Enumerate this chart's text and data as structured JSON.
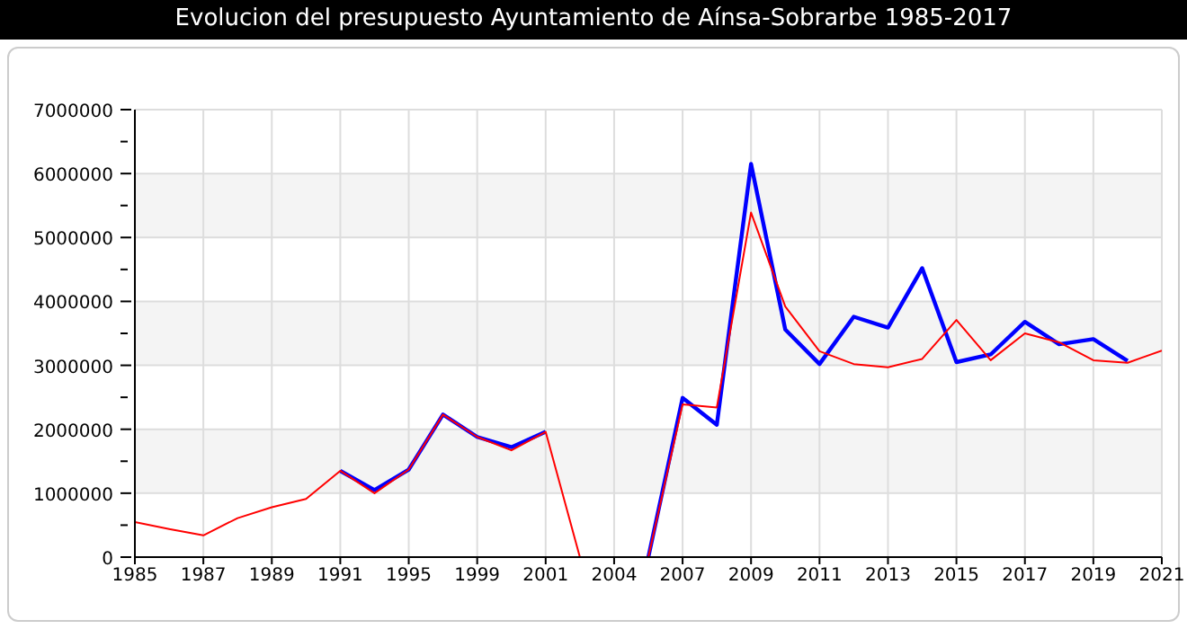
{
  "chart_data": {
    "type": "line",
    "title": "Evolucion del presupuesto Ayuntamiento de Aínsa-Sobrarbe 1985-2017",
    "categories": [
      "1985",
      null,
      "1987",
      null,
      "1989",
      null,
      "1991",
      null,
      "1995",
      null,
      "1999",
      null,
      "2001",
      null,
      "2004",
      null,
      "2007",
      null,
      "2009",
      null,
      "2011",
      null,
      "2013",
      null,
      "2015",
      null,
      "2017",
      null,
      "2019",
      null,
      "2021"
    ],
    "series": [
      {
        "color": "#0000ff",
        "values": [
          null,
          null,
          null,
          null,
          null,
          null,
          1350000,
          1050000,
          1370000,
          2230000,
          1880000,
          1720000,
          1960000,
          null,
          null,
          0,
          2490000,
          2070000,
          6150000,
          3560000,
          3020000,
          3760000,
          3590000,
          4520000,
          3050000,
          3170000,
          3680000,
          3330000,
          3410000,
          3070000,
          null
        ]
      },
      {
        "color": "#ff0000",
        "values": [
          550000,
          440000,
          340000,
          610000,
          780000,
          910000,
          1350000,
          1000000,
          1370000,
          2230000,
          1880000,
          1670000,
          1960000,
          0,
          0,
          0,
          2390000,
          2340000,
          5390000,
          3920000,
          3220000,
          3020000,
          2970000,
          3100000,
          3710000,
          3080000,
          3500000,
          3360000,
          3080000,
          3040000,
          3230000
        ]
      }
    ],
    "ylim": [
      0,
      7000000
    ],
    "yticks": [
      0,
      {
        "value": 500000,
        "label": null
      },
      1000000,
      {
        "value": 1500000,
        "label": null
      },
      2000000,
      {
        "value": 2500000,
        "label": null
      },
      3000000,
      {
        "value": 3500000,
        "label": null
      },
      4000000,
      {
        "value": 4500000,
        "label": null
      },
      5000000,
      {
        "value": 5500000,
        "label": null
      },
      6000000,
      {
        "value": 6500000,
        "label": null
      },
      7000000
    ],
    "grid": true,
    "marker": "none",
    "line_style": "solid"
  }
}
